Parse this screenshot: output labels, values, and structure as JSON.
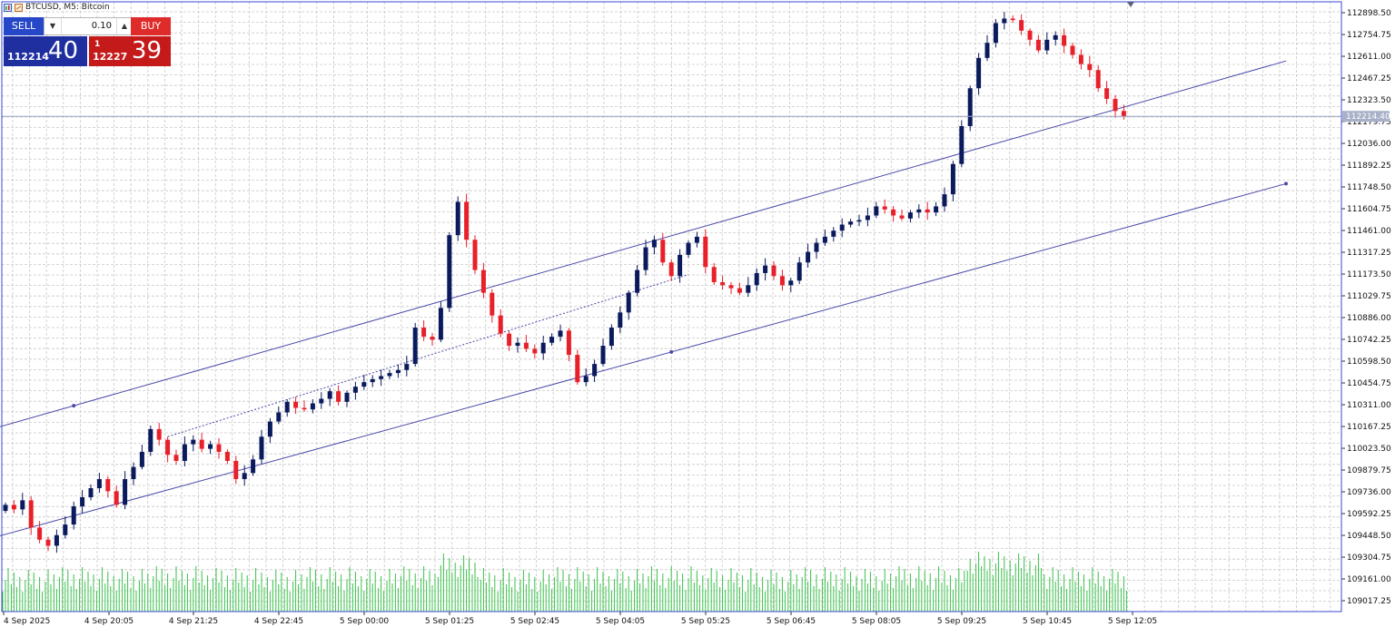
{
  "header": {
    "title": "BTCUSD, M5:  Bitcoin"
  },
  "trade_panel": {
    "sell_label": "SELL",
    "buy_label": "BUY",
    "lot_value": "0.10",
    "bid_small": "112214",
    "bid_big": "40",
    "ask_prefix": "1",
    "ask_small": "12227",
    "ask_big": "39"
  },
  "colors": {
    "bull": "#0a1a5c",
    "bear": "#e8202a",
    "volume": "#38c24a",
    "grid": "#c8c8c8",
    "channel": "#4a4aa8",
    "axis_border": "#3a4ad0"
  },
  "chart_data": {
    "type": "candlestick",
    "title": "BTCUSD, M5:  Bitcoin",
    "ylim": [
      108945.5,
      112970.5
    ],
    "y_ticks": [
      "112898.50",
      "112754.75",
      "112611.00",
      "112467.25",
      "112323.50",
      "112179.75",
      "112036.00",
      "111892.25",
      "111748.50",
      "111604.75",
      "111461.00",
      "111317.25",
      "111173.50",
      "111029.75",
      "110886.00",
      "110742.25",
      "110598.50",
      "110454.75",
      "110311.00",
      "110167.25",
      "110023.50",
      "109879.75",
      "109736.00",
      "109592.25",
      "109448.50",
      "109304.75",
      "109161.00",
      "109017.25"
    ],
    "current_price": "112214.40",
    "x_ticks": [
      "4 Sep 2025",
      "4 Sep 20:05",
      "4 Sep 21:25",
      "4 Sep 22:45",
      "5 Sep 00:00",
      "5 Sep 01:25",
      "5 Sep 02:45",
      "5 Sep 04:05",
      "5 Sep 05:25",
      "5 Sep 06:45",
      "5 Sep 08:05",
      "5 Sep 09:25",
      "5 Sep 10:45",
      "5 Sep 12:05"
    ],
    "close_path": [
      109650,
      109620,
      109680,
      109500,
      109420,
      109380,
      109450,
      109520,
      109640,
      109700,
      109760,
      109820,
      109740,
      109650,
      109820,
      109900,
      110000,
      110150,
      110080,
      109980,
      109940,
      110050,
      110080,
      110020,
      110050,
      110000,
      109940,
      109820,
      109860,
      109950,
      110100,
      110200,
      110260,
      110330,
      110290,
      110280,
      110320,
      110350,
      110400,
      110330,
      110390,
      110430,
      110460,
      110480,
      110500,
      110520,
      110540,
      110580,
      110820,
      110760,
      110740,
      110950,
      111430,
      111650,
      111400,
      111200,
      111050,
      110900,
      110780,
      110700,
      110720,
      110680,
      110650,
      110720,
      110760,
      110800,
      110640,
      110460,
      110500,
      110580,
      110700,
      110820,
      110920,
      111050,
      111200,
      111350,
      111400,
      111250,
      111160,
      111300,
      111380,
      111420,
      111220,
      111120,
      111100,
      111080,
      111050,
      111100,
      111180,
      111230,
      111160,
      111100,
      111130,
      111250,
      111320,
      111380,
      111420,
      111460,
      111500,
      111520,
      111530,
      111560,
      111620,
      111600,
      111560,
      111540,
      111580,
      111600,
      111580,
      111620,
      111700,
      111900,
      112150,
      112400,
      112600,
      112700,
      112830,
      112860,
      112850,
      112780,
      112720,
      112650,
      112720,
      112750,
      112680,
      112620,
      112560,
      112520,
      112400,
      112330,
      112250,
      112214
    ],
    "channel_lines": [
      {
        "from": [
          -1,
          110160
        ],
        "to": [
          150,
          112580
        ]
      },
      {
        "from": [
          -1,
          109440
        ],
        "to": [
          150,
          111770
        ]
      },
      {
        "from": [
          19,
          110100
        ],
        "to": [
          80,
          111170
        ]
      }
    ]
  }
}
